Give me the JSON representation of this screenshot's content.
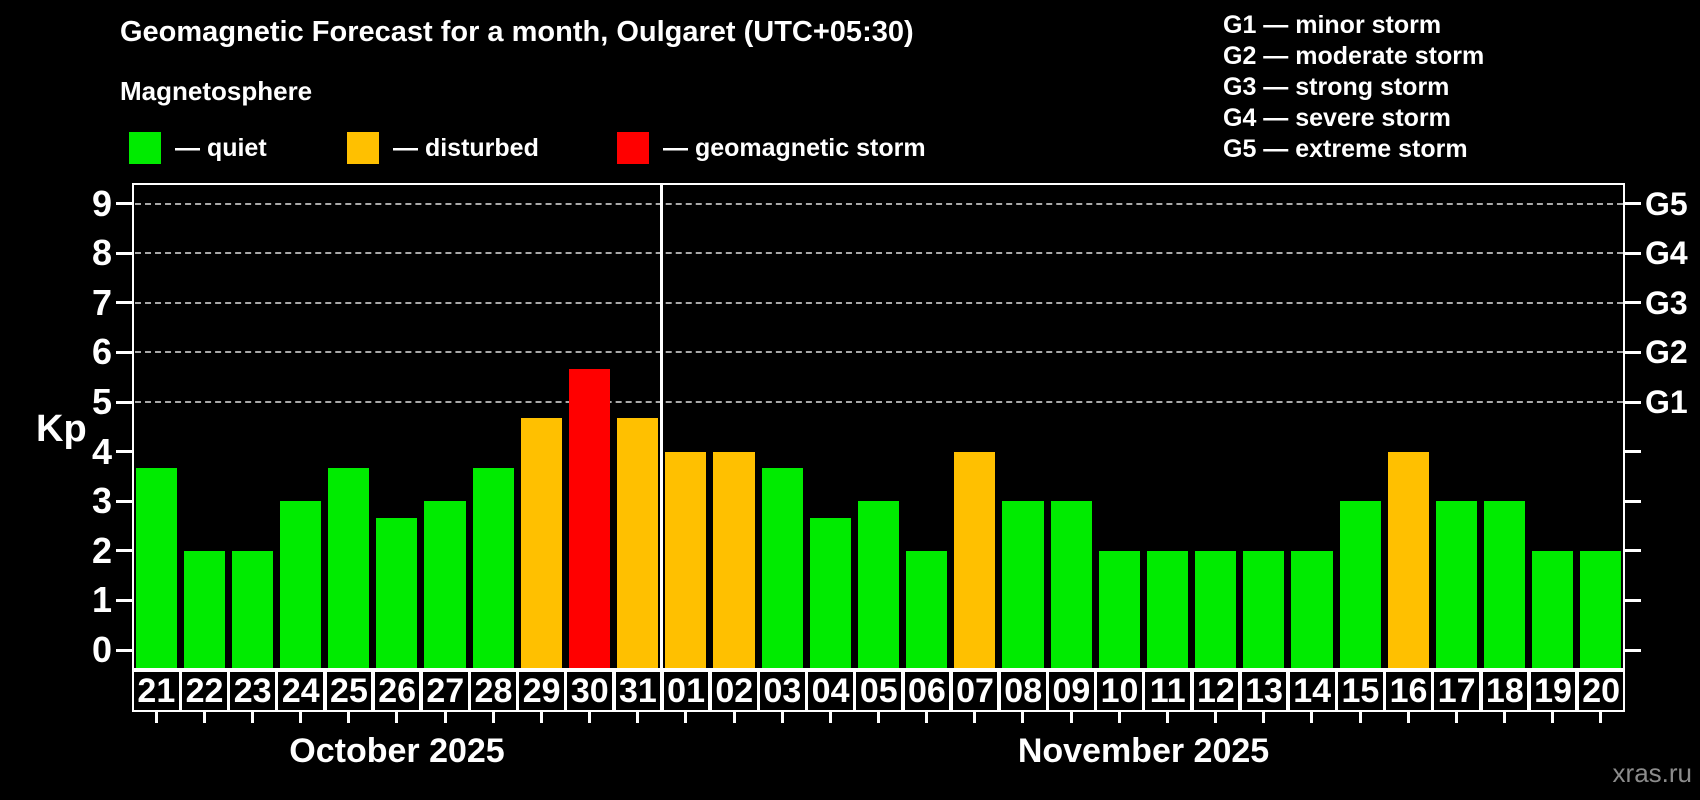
{
  "header": {
    "title": "Geomagnetic Forecast for a month, Oulgaret (UTC+05:30)",
    "subtitle": "Magnetosphere"
  },
  "legend": {
    "items": [
      {
        "status": "quiet",
        "label": "— quiet",
        "color": "#00eb00"
      },
      {
        "status": "disturbed",
        "label": "— disturbed",
        "color": "#ffc000"
      },
      {
        "status": "storm",
        "label": "— geomagnetic storm",
        "color": "#ff0000"
      }
    ]
  },
  "g_legend": {
    "lines": [
      "G1 — minor storm",
      "G2 — moderate storm",
      "G3 — strong storm",
      "G4 — severe storm",
      "G5 — extreme storm"
    ]
  },
  "axis": {
    "y_label": "Kp",
    "kp_ticks": [
      0,
      1,
      2,
      3,
      4,
      5,
      6,
      7,
      8,
      9
    ],
    "g_levels": [
      {
        "label": "G1",
        "kp": 5
      },
      {
        "label": "G2",
        "kp": 6
      },
      {
        "label": "G3",
        "kp": 7
      },
      {
        "label": "G4",
        "kp": 8
      },
      {
        "label": "G5",
        "kp": 9
      }
    ]
  },
  "chart_data": {
    "type": "bar",
    "title": "Geomagnetic Forecast for a month, Oulgaret (UTC+05:30)",
    "xlabel": "",
    "ylabel": "Kp",
    "ylim": [
      0,
      9
    ],
    "grid": "dashed horizontal lines at Kp 5-9 only",
    "legend_position": "top",
    "gridlines_kp": [
      5,
      6,
      7,
      8,
      9
    ],
    "colors": {
      "quiet": "#00eb00",
      "disturbed": "#ffc000",
      "storm": "#ff0000"
    },
    "months": [
      {
        "label": "October 2025",
        "days": [
          "21",
          "22",
          "23",
          "24",
          "25",
          "26",
          "27",
          "28",
          "29",
          "30",
          "31"
        ]
      },
      {
        "label": "November 2025",
        "days": [
          "01",
          "02",
          "03",
          "04",
          "05",
          "06",
          "07",
          "08",
          "09",
          "10",
          "11",
          "12",
          "13",
          "14",
          "15",
          "16",
          "17",
          "18",
          "19",
          "20"
        ]
      }
    ],
    "categories": [
      "Oct 21",
      "Oct 22",
      "Oct 23",
      "Oct 24",
      "Oct 25",
      "Oct 26",
      "Oct 27",
      "Oct 28",
      "Oct 29",
      "Oct 30",
      "Oct 31",
      "Nov 01",
      "Nov 02",
      "Nov 03",
      "Nov 04",
      "Nov 05",
      "Nov 06",
      "Nov 07",
      "Nov 08",
      "Nov 09",
      "Nov 10",
      "Nov 11",
      "Nov 12",
      "Nov 13",
      "Nov 14",
      "Nov 15",
      "Nov 16",
      "Nov 17",
      "Nov 18",
      "Nov 19",
      "Nov 20"
    ],
    "values": [
      3.67,
      2,
      2,
      3,
      3.67,
      2.67,
      3,
      3.67,
      4.67,
      5.67,
      4.67,
      4,
      4,
      3.67,
      2.67,
      3,
      2,
      4,
      3,
      3,
      2,
      2,
      2,
      2,
      2,
      3,
      4,
      3,
      3,
      2,
      2
    ],
    "statuses": [
      "quiet",
      "quiet",
      "quiet",
      "quiet",
      "quiet",
      "quiet",
      "quiet",
      "quiet",
      "disturbed",
      "storm",
      "disturbed",
      "disturbed",
      "disturbed",
      "quiet",
      "quiet",
      "quiet",
      "quiet",
      "disturbed",
      "quiet",
      "quiet",
      "quiet",
      "quiet",
      "quiet",
      "quiet",
      "quiet",
      "quiet",
      "disturbed",
      "quiet",
      "quiet",
      "quiet",
      "quiet"
    ]
  },
  "watermark": "xras.ru"
}
